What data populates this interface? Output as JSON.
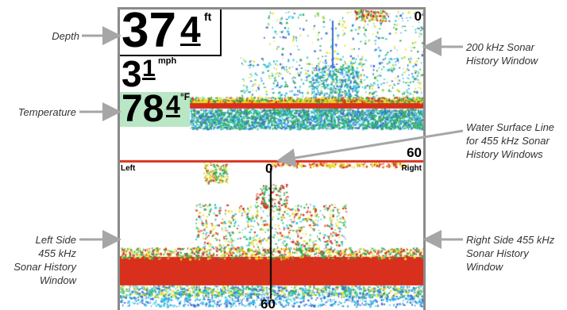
{
  "callouts": {
    "depth": "Depth",
    "temperature": "Temperature",
    "left_window": [
      "Left Side",
      "455 kHz",
      "Sonar History",
      "Window"
    ],
    "sonar_200": [
      "200 kHz Sonar",
      "History Window"
    ],
    "water_surface": [
      "Water Surface Line",
      "for 455 kHz Sonar",
      "History Windows"
    ],
    "right_window": [
      "Right Side 455 kHz",
      "Sonar History",
      "Window"
    ]
  },
  "display": {
    "depth": {
      "big": "37",
      "small": "4",
      "unit": "ft"
    },
    "speed": {
      "big": "3",
      "small": "1",
      "unit": "mph"
    },
    "temperature": {
      "big": "78",
      "small": "4",
      "unit": "°F"
    },
    "top_scale": "0",
    "side_scale_top": "60",
    "center_top": "0",
    "center_bottom": "60",
    "left_label": "Left",
    "right_label": "Right"
  },
  "colors": {
    "red": "#d8301c",
    "yellow": "#e8e020",
    "green": "#2fae5a",
    "cyan": "#35c7e2",
    "blue": "#3a6fd6",
    "callout": "#333333",
    "arrow": "#a6a6a6"
  }
}
